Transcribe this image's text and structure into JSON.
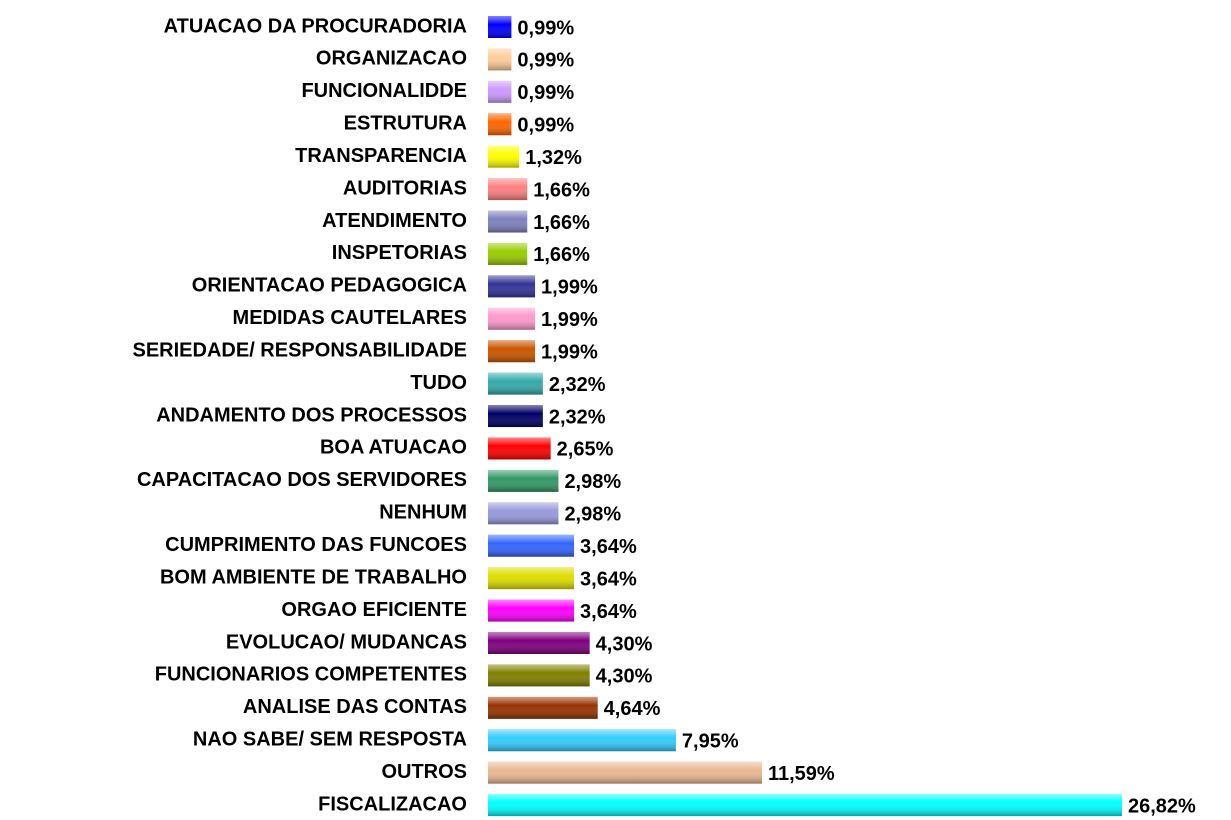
{
  "chart_data": {
    "type": "barh",
    "categories": [
      "ATUACAO DA PROCURADORIA",
      "ORGANIZACAO",
      "FUNCIONALIDDE",
      "ESTRUTURA",
      "TRANSPARENCIA",
      "AUDITORIAS",
      "ATENDIMENTO",
      "INSPETORIAS",
      "ORIENTACAO PEDAGOGICA",
      "MEDIDAS CAUTELARES",
      "SERIEDADE/ RESPONSABILIDADE",
      "TUDO",
      "ANDAMENTO DOS PROCESSOS",
      "BOA ATUACAO",
      "CAPACITACAO DOS SERVIDORES",
      "NENHUM",
      "CUMPRIMENTO DAS FUNCOES",
      "BOM AMBIENTE DE TRABALHO",
      "ORGAO EFICIENTE",
      "EVOLUCAO/ MUDANCAS",
      "FUNCIONARIOS COMPETENTES",
      "ANALISE DAS CONTAS",
      "NAO SABE/ SEM RESPOSTA",
      "OUTROS",
      "FISCALIZACAO"
    ],
    "values": [
      0.99,
      0.99,
      0.99,
      0.99,
      1.32,
      1.66,
      1.66,
      1.66,
      1.99,
      1.99,
      1.99,
      2.32,
      2.32,
      2.65,
      2.98,
      2.98,
      3.64,
      3.64,
      3.64,
      4.3,
      4.3,
      4.64,
      7.95,
      11.59,
      26.82
    ],
    "value_labels": [
      "0,99%",
      "0,99%",
      "0,99%",
      "0,99%",
      "1,32%",
      "1,66%",
      "1,66%",
      "1,66%",
      "1,99%",
      "1,99%",
      "1,99%",
      "2,32%",
      "2,32%",
      "2,65%",
      "2,98%",
      "2,98%",
      "3,64%",
      "3,64%",
      "3,64%",
      "4,30%",
      "4,30%",
      "4,64%",
      "7,95%",
      "11,59%",
      "26,82%"
    ],
    "colors": [
      "#0000ff",
      "#ffcc99",
      "#cc99ff",
      "#ff6600",
      "#ffff00",
      "#ff8080",
      "#8080c0",
      "#99cc00",
      "#333399",
      "#ff99cc",
      "#cc5500",
      "#33aaaa",
      "#000066",
      "#ff0000",
      "#339966",
      "#9999dd",
      "#3366ff",
      "#dddd00",
      "#ff00ff",
      "#800080",
      "#808000",
      "#993300",
      "#33ccff",
      "#e8b890",
      "#00ffff"
    ]
  }
}
